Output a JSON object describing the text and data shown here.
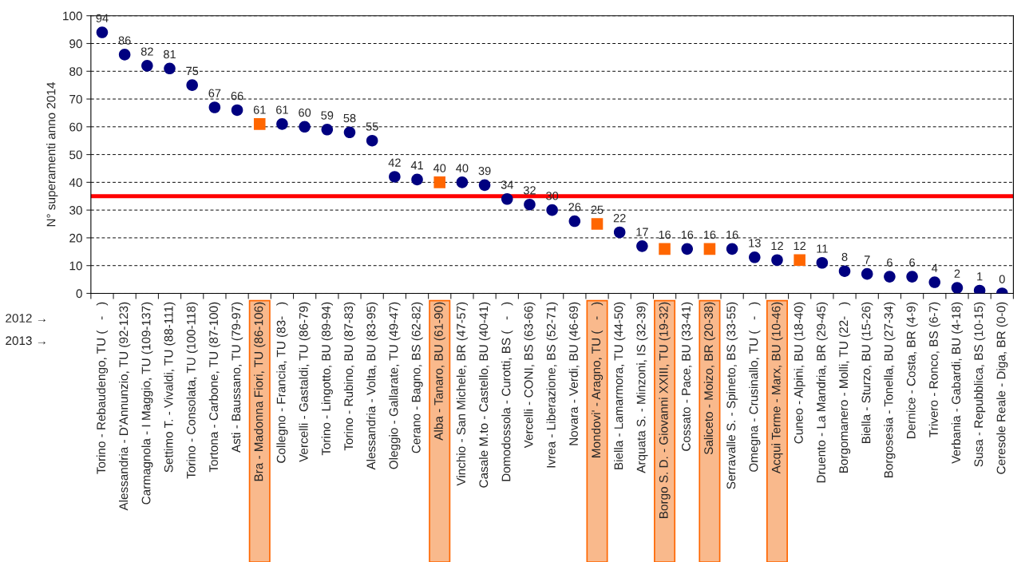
{
  "chart_data": {
    "type": "scatter",
    "ylabel": "N° superamenti anno 2014",
    "categories": [
      "Torino - Rebaudengo, TU (   -   )",
      "Alessandria - D'Annunzio, TU (92-123)",
      "Carmagnola - I Maggio, TU (109-137)",
      "Settimo T. - Vivaldi, TU (88-111)",
      "Torino - Consolata, TU (100-118)",
      "Tortona - Carbone, TU (87-100)",
      "Asti - Baussano, TU (79-97)",
      "Bra - Madonna Fiori, TU (86-106)",
      "Collegno - Francia, TU (83-   )",
      "Vercelli - Gastaldi, TU (86-79)",
      "Torino - Lingotto, BU (89-94)",
      "Torino - Rubino, BU (87-83)",
      "Alessandria - Volta, BU (83-95)",
      "Oleggio - Gallarate, TU (49-47)",
      "Cerano - Bagno, BS (62-82)",
      "Alba - Tanaro, BU (61-90)",
      "Vinchio - San Michele, BR (47-57)",
      "Casale M.to - Castello, BU (40-41)",
      "Domodossola - Curotti, BS (   -   )",
      "Vercelli - CONI, BS (63-66)",
      "Ivrea - Liberazione, BS (52-71)",
      "Novara - Verdi, BU (46-69)",
      "Mondovi' - Aragno, TU (   -   )",
      "Biella - Lamarmora, TU (44-50)",
      "Arquata S. - Minzoni, IS (32-39)",
      "Borgo S. D. - Giovanni XXIII, TU (19-32)",
      "Cossato - Pace, BU (33-41)",
      "Saliceto - Moizo, BR (20-38)",
      "Serravalle S. - Spineto, BS (33-55)",
      "Omegna - Crusinallo, TU (   -   )",
      "Acqui Terme - Marx, BU (10-46)",
      "Cuneo - Alpini, BU (18-40)",
      "Druento - La Mandria, BR (29-45)",
      "Borgomanero - Molli, TU (22-   )",
      "Biella - Sturzo, BU (15-26)",
      "Borgosesia - Tonella, BU (27-34)",
      "Dernice - Costa, BR (4-9)",
      "Trivero - Ronco, BS (6-7)",
      "Verbania - Gabardi, BU (4-18)",
      "Susa - Repubblica, BS (10-15)",
      "Ceresole Reale - Diga, BR (0-0)"
    ],
    "series": [
      {
        "color": "#000080",
        "marker": "circle",
        "values": [
          94,
          86,
          82,
          81,
          75,
          67,
          66,
          null,
          61,
          60,
          59,
          58,
          55,
          42,
          41,
          null,
          40,
          39,
          34,
          32,
          30,
          26,
          null,
          22,
          17,
          null,
          16,
          null,
          16,
          13,
          12,
          null,
          11,
          8,
          7,
          6,
          6,
          4,
          2,
          1,
          0
        ]
      },
      {
        "color": "#ff6600",
        "marker": "square",
        "values": [
          null,
          null,
          null,
          null,
          null,
          null,
          null,
          61,
          null,
          null,
          null,
          null,
          null,
          null,
          null,
          40,
          null,
          null,
          null,
          null,
          null,
          null,
          25,
          null,
          null,
          16,
          null,
          16,
          null,
          null,
          null,
          12,
          null,
          null,
          null,
          null,
          null,
          null,
          null,
          null,
          null
        ]
      }
    ],
    "ylim": [
      0,
      100
    ],
    "yticks": [
      0,
      10,
      20,
      30,
      40,
      50,
      60,
      70,
      80,
      90,
      100
    ],
    "grid": "y",
    "data_labels": true,
    "ref_lines": [
      {
        "axis": "y",
        "value": 35,
        "color": "#ff0000"
      }
    ],
    "annotations": [
      "2012 →",
      "2013 →"
    ]
  }
}
